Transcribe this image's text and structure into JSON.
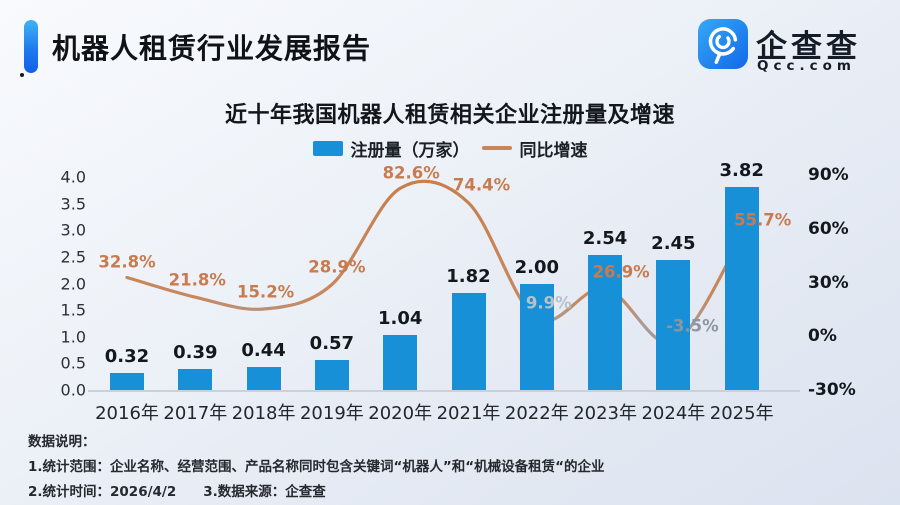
{
  "header": {
    "title": "机器人租赁行业发展报告",
    "brand": "企查查",
    "brand_domain": "Qcc.com"
  },
  "colors": {
    "bar_blue": "#1890d8",
    "line_orange": "#c8824f",
    "line_gray": "#919aa4",
    "accent_blue_top": "#41b2f5",
    "accent_blue_bottom": "#125fe8"
  },
  "chart_data": {
    "type": "bar",
    "title": "近十年我国机器人租赁相关企业注册量及增速",
    "categories": [
      "2016年",
      "2017年",
      "2018年",
      "2019年",
      "2020年",
      "2021年",
      "2022年",
      "2023年",
      "2024年",
      "2025年"
    ],
    "series": [
      {
        "name": "注册量（万家）",
        "type": "bar",
        "axis": "left",
        "color": "#1890d8",
        "values": [
          0.32,
          0.39,
          0.44,
          0.57,
          1.04,
          1.82,
          2.0,
          2.54,
          2.45,
          3.82
        ],
        "labels": [
          "0.32",
          "0.39",
          "0.44",
          "0.57",
          "1.04",
          "1.82",
          "2.00",
          "2.54",
          "2.45",
          "3.82"
        ]
      },
      {
        "name": "同比增速",
        "type": "line",
        "axis": "right",
        "values": [
          32.8,
          21.8,
          15.2,
          28.9,
          82.6,
          74.4,
          9.9,
          26.9,
          -3.5,
          55.7
        ],
        "labels": [
          "32.8%",
          "21.8%",
          "15.2%",
          "28.9%",
          "82.6%",
          "74.4%",
          "9.9%",
          "26.9%",
          "-3.5%",
          "55.7%"
        ],
        "label_colors": [
          "#c87b4e",
          "#c87b4e",
          "#c87b4e",
          "#c87b4e",
          "#c87b4e",
          "#c87b4e",
          "#b7c1c9",
          "#c87b4e",
          "#8d969e",
          "#c87b4e"
        ],
        "label_offsets": [
          [
            0,
            -15
          ],
          [
            2,
            -17
          ],
          [
            2,
            -17
          ],
          [
            5,
            -17
          ],
          [
            11,
            -15
          ],
          [
            13,
            -18
          ],
          [
            12,
            -16
          ],
          [
            16,
            -16
          ],
          [
            19,
            -17
          ],
          [
            21,
            -16
          ]
        ],
        "color_gradient": [
          "#c77f4f",
          "#c8875c",
          "#ab9b94",
          "#8f99a3"
        ]
      }
    ],
    "left_axis": {
      "ticks": [
        "4.0",
        "3.5",
        "3.0",
        "2.5",
        "2.0",
        "1.5",
        "1.0",
        "0.5",
        "0.0"
      ],
      "min": 0.0,
      "max": 4.0
    },
    "right_axis": {
      "ticks": [
        "90%",
        "60%",
        "30%",
        "0%",
        "-30%"
      ],
      "min": -30,
      "max": 90
    },
    "grid": false,
    "legend_position": "top"
  },
  "footer": {
    "heading": "数据说明：",
    "lines": [
      "数据说明：",
      "1.统计范围：企业名称、经营范围、产品名称同时包含关键词“机器人”和“机械设备租赁“的企业",
      "2.统计时间：2026/4/2　　3.数据来源：企查查"
    ]
  }
}
